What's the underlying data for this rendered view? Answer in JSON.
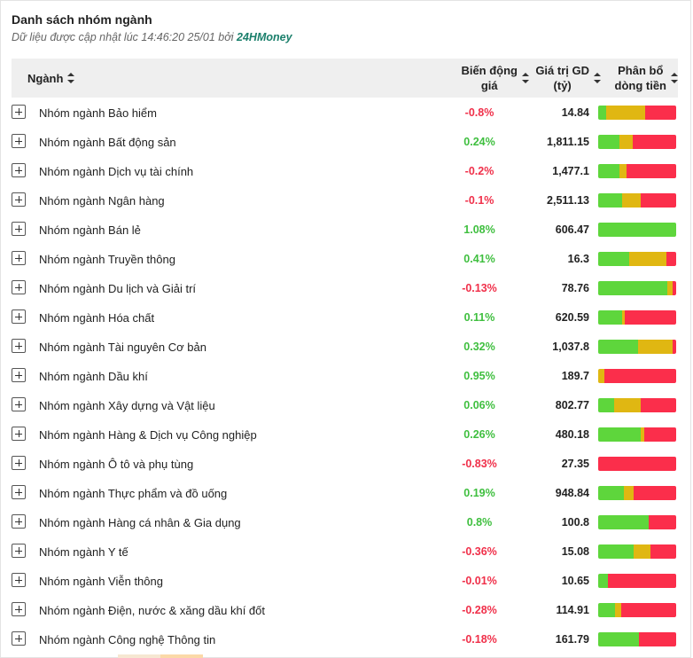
{
  "header": {
    "title": "Danh sách nhóm ngành",
    "subtitle_prefix": "Dữ liệu được cập nhật lúc 14:46:20 25/01 bởi ",
    "brand": "24HMoney"
  },
  "columns": {
    "sector": "Ngành",
    "change_line1": "Biến động",
    "change_line2": "giá",
    "value_line1": "Giá trị GD",
    "value_line2": "(tỷ)",
    "flow_line1": "Phân bổ",
    "flow_line2": "dòng tiền"
  },
  "colors": {
    "up": "#5ed63c",
    "flat": "#e0b712",
    "down": "#fb2e4b",
    "brand": "#1a7f6b"
  },
  "rows": [
    {
      "name": "Nhóm ngành Bảo hiểm",
      "change": "-0.8%",
      "dir": "down",
      "value": "14.84",
      "flow": [
        0.1,
        0.5,
        0.4
      ]
    },
    {
      "name": "Nhóm ngành Bất động sản",
      "change": "0.24%",
      "dir": "up",
      "value": "1,811.15",
      "flow": [
        0.27,
        0.17,
        0.56
      ]
    },
    {
      "name": "Nhóm ngành Dịch vụ tài chính",
      "change": "-0.2%",
      "dir": "down",
      "value": "1,477.1",
      "flow": [
        0.27,
        0.09,
        0.64
      ]
    },
    {
      "name": "Nhóm ngành Ngân hàng",
      "change": "-0.1%",
      "dir": "down",
      "value": "2,511.13",
      "flow": [
        0.31,
        0.24,
        0.45
      ]
    },
    {
      "name": "Nhóm ngành Bán lẻ",
      "change": "1.08%",
      "dir": "up",
      "value": "606.47",
      "flow": [
        1.0,
        0.0,
        0.0
      ]
    },
    {
      "name": "Nhóm ngành Truyền thông",
      "change": "0.41%",
      "dir": "up",
      "value": "16.3",
      "flow": [
        0.4,
        0.48,
        0.12
      ]
    },
    {
      "name": "Nhóm ngành Du lịch và Giải trí",
      "change": "-0.13%",
      "dir": "down",
      "value": "78.76",
      "flow": [
        0.89,
        0.06,
        0.05
      ]
    },
    {
      "name": "Nhóm ngành Hóa chất",
      "change": "0.11%",
      "dir": "up",
      "value": "620.59",
      "flow": [
        0.31,
        0.03,
        0.66
      ]
    },
    {
      "name": "Nhóm ngành Tài nguyên Cơ bản",
      "change": "0.32%",
      "dir": "up",
      "value": "1,037.8",
      "flow": [
        0.51,
        0.44,
        0.05
      ]
    },
    {
      "name": "Nhóm ngành Dầu khí",
      "change": "0.95%",
      "dir": "up",
      "value": "189.7",
      "flow": [
        0.0,
        0.08,
        0.92
      ]
    },
    {
      "name": "Nhóm ngành Xây dựng và Vật liệu",
      "change": "0.06%",
      "dir": "up",
      "value": "802.77",
      "flow": [
        0.2,
        0.35,
        0.45
      ]
    },
    {
      "name": "Nhóm ngành Hàng & Dịch vụ Công nghiệp",
      "change": "0.26%",
      "dir": "up",
      "value": "480.18",
      "flow": [
        0.55,
        0.04,
        0.41
      ]
    },
    {
      "name": "Nhóm ngành Ô tô và phụ tùng",
      "change": "-0.83%",
      "dir": "down",
      "value": "27.35",
      "flow": [
        0.0,
        0.0,
        1.0
      ]
    },
    {
      "name": "Nhóm ngành Thực phẩm và đồ uống",
      "change": "0.19%",
      "dir": "up",
      "value": "948.84",
      "flow": [
        0.33,
        0.12,
        0.55
      ]
    },
    {
      "name": "Nhóm ngành Hàng cá nhân & Gia dụng",
      "change": "0.8%",
      "dir": "up",
      "value": "100.8",
      "flow": [
        0.65,
        0.0,
        0.35
      ]
    },
    {
      "name": "Nhóm ngành Y tế",
      "change": "-0.36%",
      "dir": "down",
      "value": "15.08",
      "flow": [
        0.46,
        0.21,
        0.33
      ]
    },
    {
      "name": "Nhóm ngành Viễn thông",
      "change": "-0.01%",
      "dir": "down",
      "value": "10.65",
      "flow": [
        0.12,
        0.0,
        0.88
      ]
    },
    {
      "name": "Nhóm ngành Điện, nước & xăng dầu khí đốt",
      "change": "-0.28%",
      "dir": "down",
      "value": "114.91",
      "flow": [
        0.22,
        0.07,
        0.71
      ]
    },
    {
      "name": "Nhóm ngành Công nghệ Thông tin",
      "change": "-0.18%",
      "dir": "down",
      "value": "161.79",
      "flow": [
        0.52,
        0.0,
        0.48
      ]
    }
  ]
}
